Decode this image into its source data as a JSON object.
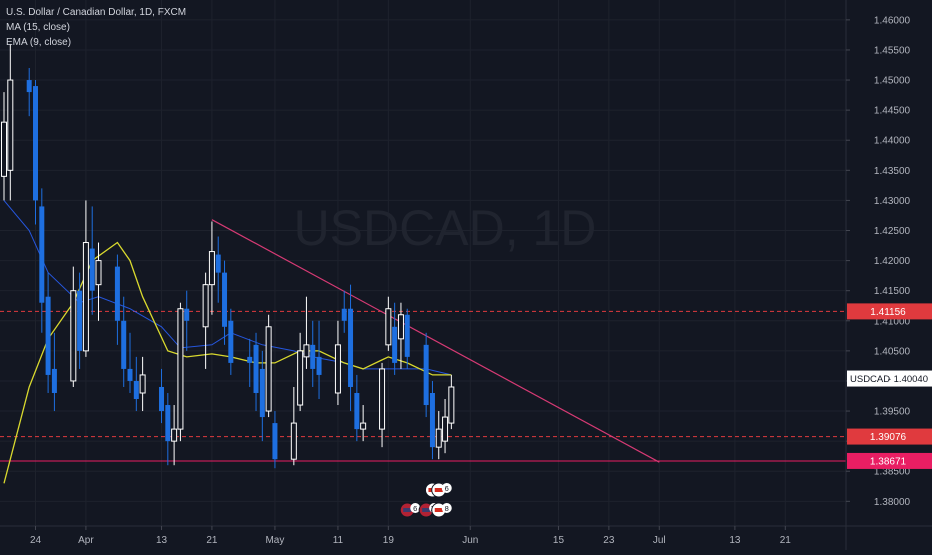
{
  "header": {
    "symbol_line": "U.S. Dollar / Canadian Dollar, 1D, FXCM",
    "ma_label": "MA (15, close)",
    "ema_label": "EMA (9, close)"
  },
  "watermark": "USDCAD, 1D",
  "colors": {
    "background": "#131722",
    "grid": "#1e222d",
    "up": "#ffffff",
    "down": "#1e6fe0",
    "ma_line": "#2962ff",
    "ema_line": "#d9d92e",
    "trendline": "#d63a74",
    "level_red": "#e03a3e",
    "level_pink": "#e91e63"
  },
  "chart_data": {
    "type": "candlestick",
    "y_axis": {
      "ticks": [
        "1.46000",
        "1.45500",
        "1.45000",
        "1.44500",
        "1.44000",
        "1.43500",
        "1.43000",
        "1.42500",
        "1.42000",
        "1.41500",
        "1.41000",
        "1.40500",
        "1.40000",
        "1.39500",
        "1.39000",
        "1.38500",
        "1.38000"
      ],
      "range": [
        1.3759,
        1.4633
      ]
    },
    "x_axis": {
      "ticks": [
        {
          "label": "24",
          "date": "2020-03-24"
        },
        {
          "label": "Apr",
          "date": "2020-04-01"
        },
        {
          "label": "13",
          "date": "2020-04-13"
        },
        {
          "label": "21",
          "date": "2020-04-21"
        },
        {
          "label": "May",
          "date": "2020-05-01"
        },
        {
          "label": "11",
          "date": "2020-05-11"
        },
        {
          "label": "19",
          "date": "2020-05-19"
        },
        {
          "label": "Jun",
          "date": "2020-06-01"
        },
        {
          "label": "15",
          "date": "2020-06-15"
        },
        {
          "label": "23",
          "date": "2020-06-23"
        },
        {
          "label": "Jul",
          "date": "2020-07-01"
        },
        {
          "label": "13",
          "date": "2020-07-13"
        },
        {
          "label": "21",
          "date": "2020-07-21"
        }
      ],
      "range": [
        "2020-03-19",
        "2020-07-30"
      ]
    },
    "candles": [
      {
        "date": "2020-03-19",
        "open": 1.434,
        "high": 1.448,
        "low": 1.43,
        "close": 1.443
      },
      {
        "date": "2020-03-20",
        "open": 1.435,
        "high": 1.456,
        "low": 1.43,
        "close": 1.45
      },
      {
        "date": "2020-03-23",
        "open": 1.45,
        "high": 1.452,
        "low": 1.444,
        "close": 1.448
      },
      {
        "date": "2020-03-24",
        "open": 1.449,
        "high": 1.45,
        "low": 1.426,
        "close": 1.43
      },
      {
        "date": "2020-03-25",
        "open": 1.429,
        "high": 1.432,
        "low": 1.408,
        "close": 1.413
      },
      {
        "date": "2020-03-26",
        "open": 1.414,
        "high": 1.418,
        "low": 1.398,
        "close": 1.401
      },
      {
        "date": "2020-03-27",
        "open": 1.402,
        "high": 1.408,
        "low": 1.395,
        "close": 1.398
      },
      {
        "date": "2020-03-30",
        "open": 1.4,
        "high": 1.419,
        "low": 1.399,
        "close": 1.415
      },
      {
        "date": "2020-03-31",
        "open": 1.415,
        "high": 1.418,
        "low": 1.402,
        "close": 1.405
      },
      {
        "date": "2020-04-01",
        "open": 1.405,
        "high": 1.43,
        "low": 1.404,
        "close": 1.423
      },
      {
        "date": "2020-04-02",
        "open": 1.422,
        "high": 1.429,
        "low": 1.411,
        "close": 1.415
      },
      {
        "date": "2020-04-03",
        "open": 1.416,
        "high": 1.423,
        "low": 1.41,
        "close": 1.42
      },
      {
        "date": "2020-04-06",
        "open": 1.419,
        "high": 1.421,
        "low": 1.406,
        "close": 1.41
      },
      {
        "date": "2020-04-07",
        "open": 1.41,
        "high": 1.414,
        "low": 1.399,
        "close": 1.402
      },
      {
        "date": "2020-04-08",
        "open": 1.402,
        "high": 1.408,
        "low": 1.398,
        "close": 1.4
      },
      {
        "date": "2020-04-09",
        "open": 1.4,
        "high": 1.404,
        "low": 1.395,
        "close": 1.397
      },
      {
        "date": "2020-04-10",
        "open": 1.398,
        "high": 1.404,
        "low": 1.395,
        "close": 1.401
      },
      {
        "date": "2020-04-13",
        "open": 1.399,
        "high": 1.402,
        "low": 1.393,
        "close": 1.395
      },
      {
        "date": "2020-04-14",
        "open": 1.396,
        "high": 1.398,
        "low": 1.386,
        "close": 1.39
      },
      {
        "date": "2020-04-15",
        "open": 1.39,
        "high": 1.396,
        "low": 1.386,
        "close": 1.392
      },
      {
        "date": "2020-04-16",
        "open": 1.392,
        "high": 1.413,
        "low": 1.39,
        "close": 1.412
      },
      {
        "date": "2020-04-17",
        "open": 1.412,
        "high": 1.415,
        "low": 1.405,
        "close": 1.41
      },
      {
        "date": "2020-04-20",
        "open": 1.409,
        "high": 1.418,
        "low": 1.402,
        "close": 1.416
      },
      {
        "date": "2020-04-21",
        "open": 1.416,
        "high": 1.4265,
        "low": 1.411,
        "close": 1.4215
      },
      {
        "date": "2020-04-22",
        "open": 1.421,
        "high": 1.424,
        "low": 1.413,
        "close": 1.418
      },
      {
        "date": "2020-04-23",
        "open": 1.418,
        "high": 1.42,
        "low": 1.406,
        "close": 1.409
      },
      {
        "date": "2020-04-24",
        "open": 1.41,
        "high": 1.412,
        "low": 1.401,
        "close": 1.403
      },
      {
        "date": "2020-04-27",
        "open": 1.404,
        "high": 1.407,
        "low": 1.399,
        "close": 1.403
      },
      {
        "date": "2020-04-28",
        "open": 1.406,
        "high": 1.408,
        "low": 1.395,
        "close": 1.398
      },
      {
        "date": "2020-04-29",
        "open": 1.402,
        "high": 1.405,
        "low": 1.39,
        "close": 1.394
      },
      {
        "date": "2020-04-30",
        "open": 1.395,
        "high": 1.411,
        "low": 1.394,
        "close": 1.409
      },
      {
        "date": "2020-05-01",
        "open": 1.393,
        "high": 1.395,
        "low": 1.3855,
        "close": 1.387
      },
      {
        "date": "2020-05-04",
        "open": 1.387,
        "high": 1.399,
        "low": 1.386,
        "close": 1.393
      },
      {
        "date": "2020-05-05",
        "open": 1.396,
        "high": 1.408,
        "low": 1.395,
        "close": 1.405
      },
      {
        "date": "2020-05-06",
        "open": 1.404,
        "high": 1.414,
        "low": 1.402,
        "close": 1.406
      },
      {
        "date": "2020-05-07",
        "open": 1.406,
        "high": 1.41,
        "low": 1.399,
        "close": 1.402
      },
      {
        "date": "2020-05-08",
        "open": 1.404,
        "high": 1.41,
        "low": 1.397,
        "close": 1.401
      },
      {
        "date": "2020-05-11",
        "open": 1.398,
        "high": 1.41,
        "low": 1.396,
        "close": 1.406
      },
      {
        "date": "2020-05-12",
        "open": 1.412,
        "high": 1.415,
        "low": 1.408,
        "close": 1.41
      },
      {
        "date": "2020-05-13",
        "open": 1.412,
        "high": 1.416,
        "low": 1.395,
        "close": 1.399
      },
      {
        "date": "2020-05-14",
        "open": 1.398,
        "high": 1.401,
        "low": 1.39,
        "close": 1.392
      },
      {
        "date": "2020-05-15",
        "open": 1.392,
        "high": 1.396,
        "low": 1.39,
        "close": 1.393
      },
      {
        "date": "2020-05-18",
        "open": 1.392,
        "high": 1.403,
        "low": 1.389,
        "close": 1.402
      },
      {
        "date": "2020-05-19",
        "open": 1.406,
        "high": 1.414,
        "low": 1.405,
        "close": 1.412
      },
      {
        "date": "2020-05-20",
        "open": 1.409,
        "high": 1.413,
        "low": 1.401,
        "close": 1.403
      },
      {
        "date": "2020-05-21",
        "open": 1.407,
        "high": 1.413,
        "low": 1.402,
        "close": 1.411
      },
      {
        "date": "2020-05-22",
        "open": 1.411,
        "high": 1.412,
        "low": 1.402,
        "close": 1.404
      },
      {
        "date": "2020-05-25",
        "open": 1.406,
        "high": 1.408,
        "low": 1.394,
        "close": 1.396
      },
      {
        "date": "2020-05-26",
        "open": 1.398,
        "high": 1.4,
        "low": 1.387,
        "close": 1.389
      },
      {
        "date": "2020-05-27",
        "open": 1.389,
        "high": 1.395,
        "low": 1.387,
        "close": 1.392
      },
      {
        "date": "2020-05-28",
        "open": 1.39,
        "high": 1.397,
        "low": 1.388,
        "close": 1.394
      },
      {
        "date": "2020-05-29",
        "open": 1.393,
        "high": 1.401,
        "low": 1.392,
        "close": 1.399
      }
    ],
    "ma": [
      {
        "date": "2020-03-19",
        "value": 1.43
      },
      {
        "date": "2020-03-23",
        "value": 1.425
      },
      {
        "date": "2020-03-26",
        "value": 1.418
      },
      {
        "date": "2020-03-31",
        "value": 1.413
      },
      {
        "date": "2020-04-03",
        "value": 1.414
      },
      {
        "date": "2020-04-08",
        "value": 1.412
      },
      {
        "date": "2020-04-13",
        "value": 1.409
      },
      {
        "date": "2020-04-16",
        "value": 1.4055
      },
      {
        "date": "2020-04-21",
        "value": 1.406
      },
      {
        "date": "2020-04-24",
        "value": 1.408
      },
      {
        "date": "2020-04-29",
        "value": 1.406
      },
      {
        "date": "2020-05-04",
        "value": 1.405
      },
      {
        "date": "2020-05-07",
        "value": 1.404
      },
      {
        "date": "2020-05-12",
        "value": 1.403
      },
      {
        "date": "2020-05-15",
        "value": 1.402
      },
      {
        "date": "2020-05-20",
        "value": 1.402
      },
      {
        "date": "2020-05-25",
        "value": 1.402
      },
      {
        "date": "2020-05-29",
        "value": 1.401
      }
    ],
    "ema": [
      {
        "date": "2020-03-19",
        "value": 1.383
      },
      {
        "date": "2020-03-23",
        "value": 1.399
      },
      {
        "date": "2020-03-26",
        "value": 1.407
      },
      {
        "date": "2020-03-30",
        "value": 1.413
      },
      {
        "date": "2020-04-02",
        "value": 1.42
      },
      {
        "date": "2020-04-06",
        "value": 1.423
      },
      {
        "date": "2020-04-08",
        "value": 1.42
      },
      {
        "date": "2020-04-10",
        "value": 1.414
      },
      {
        "date": "2020-04-14",
        "value": 1.405
      },
      {
        "date": "2020-04-17",
        "value": 1.404
      },
      {
        "date": "2020-04-21",
        "value": 1.4045
      },
      {
        "date": "2020-04-24",
        "value": 1.404
      },
      {
        "date": "2020-04-28",
        "value": 1.403
      },
      {
        "date": "2020-05-01",
        "value": 1.403
      },
      {
        "date": "2020-05-05",
        "value": 1.405
      },
      {
        "date": "2020-05-08",
        "value": 1.405
      },
      {
        "date": "2020-05-12",
        "value": 1.403
      },
      {
        "date": "2020-05-15",
        "value": 1.402
      },
      {
        "date": "2020-05-19",
        "value": 1.404
      },
      {
        "date": "2020-05-22",
        "value": 1.403
      },
      {
        "date": "2020-05-26",
        "value": 1.401
      },
      {
        "date": "2020-05-29",
        "value": 1.401
      }
    ],
    "trendline": {
      "from": {
        "date": "2020-04-21",
        "value": 1.4268
      },
      "to": {
        "date": "2020-07-01",
        "value": 1.3865
      }
    },
    "levels": [
      {
        "value": 1.41156,
        "label": "1.41156",
        "style": "dashed",
        "color": "#e03a3e"
      },
      {
        "value": 1.39076,
        "label": "1.39076",
        "style": "dashed",
        "color": "#e03a3e"
      },
      {
        "value": 1.38671,
        "label": "1.38671",
        "style": "solid",
        "color": "#e91e63"
      }
    ],
    "last_price": {
      "symbol": "USDCAD",
      "value": 1.4004,
      "label": "1.40040"
    },
    "events": [
      {
        "date": "2020-05-26",
        "badge": "2",
        "flag": "ca"
      },
      {
        "date": "2020-05-27",
        "badge": "6",
        "flag": "ca"
      },
      {
        "date": "2020-05-22",
        "badge": "6",
        "flag": "us"
      },
      {
        "date": "2020-05-25",
        "badge": "11",
        "flag": "us"
      },
      {
        "date": "2020-05-27",
        "badge": "8",
        "flag": "ca"
      }
    ]
  }
}
